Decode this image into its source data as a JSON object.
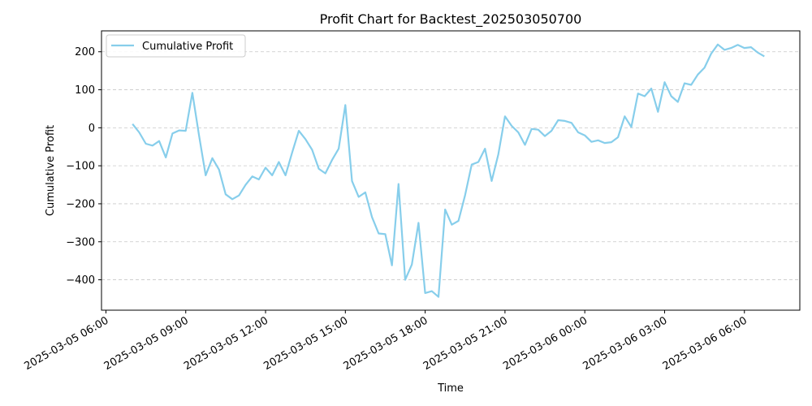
{
  "chart_data": {
    "type": "line",
    "title": "Profit Chart for Backtest_202503050700",
    "xlabel": "Time",
    "ylabel": "Cumulative Profit",
    "grid": "y-dashed",
    "legend_position": "top-left",
    "ylim": [
      -480,
      255
    ],
    "xlim": [
      "2025-03-05 05:50",
      "2025-03-06 08:05"
    ],
    "x_ticks": [
      "2025-03-05 06:00",
      "2025-03-05 09:00",
      "2025-03-05 12:00",
      "2025-03-05 15:00",
      "2025-03-05 18:00",
      "2025-03-05 21:00",
      "2025-03-06 00:00",
      "2025-03-06 03:00",
      "2025-03-06 06:00"
    ],
    "y_ticks": [
      -400,
      -300,
      -200,
      -100,
      0,
      100,
      200
    ],
    "series": [
      {
        "name": "Cumulative Profit",
        "color": "#87ceeb",
        "points": [
          [
            "2025-03-05 07:00",
            10
          ],
          [
            "2025-03-05 07:15",
            -12
          ],
          [
            "2025-03-05 07:30",
            -42
          ],
          [
            "2025-03-05 07:45",
            -47
          ],
          [
            "2025-03-05 08:00",
            -35
          ],
          [
            "2025-03-05 08:15",
            -78
          ],
          [
            "2025-03-05 08:30",
            -15
          ],
          [
            "2025-03-05 08:45",
            -7
          ],
          [
            "2025-03-05 09:00",
            -8
          ],
          [
            "2025-03-05 09:15",
            92
          ],
          [
            "2025-03-05 09:30",
            -20
          ],
          [
            "2025-03-05 09:45",
            -125
          ],
          [
            "2025-03-05 10:00",
            -80
          ],
          [
            "2025-03-05 10:15",
            -110
          ],
          [
            "2025-03-05 10:30",
            -175
          ],
          [
            "2025-03-05 10:45",
            -188
          ],
          [
            "2025-03-05 11:00",
            -178
          ],
          [
            "2025-03-05 11:15",
            -150
          ],
          [
            "2025-03-05 11:30",
            -128
          ],
          [
            "2025-03-05 11:45",
            -136
          ],
          [
            "2025-03-05 12:00",
            -105
          ],
          [
            "2025-03-05 12:15",
            -125
          ],
          [
            "2025-03-05 12:30",
            -90
          ],
          [
            "2025-03-05 12:45",
            -125
          ],
          [
            "2025-03-05 13:00",
            -65
          ],
          [
            "2025-03-05 13:15",
            -8
          ],
          [
            "2025-03-05 13:30",
            -30
          ],
          [
            "2025-03-05 13:45",
            -58
          ],
          [
            "2025-03-05 14:00",
            -108
          ],
          [
            "2025-03-05 14:15",
            -120
          ],
          [
            "2025-03-05 14:30",
            -85
          ],
          [
            "2025-03-05 14:45",
            -55
          ],
          [
            "2025-03-05 15:00",
            60
          ],
          [
            "2025-03-05 15:15",
            -140
          ],
          [
            "2025-03-05 15:30",
            -182
          ],
          [
            "2025-03-05 15:45",
            -170
          ],
          [
            "2025-03-05 16:00",
            -235
          ],
          [
            "2025-03-05 16:15",
            -278
          ],
          [
            "2025-03-05 16:30",
            -280
          ],
          [
            "2025-03-05 16:45",
            -362
          ],
          [
            "2025-03-05 17:00",
            -148
          ],
          [
            "2025-03-05 17:15",
            -400
          ],
          [
            "2025-03-05 17:30",
            -360
          ],
          [
            "2025-03-05 17:45",
            -250
          ],
          [
            "2025-03-05 18:00",
            -435
          ],
          [
            "2025-03-05 18:15",
            -430
          ],
          [
            "2025-03-05 18:30",
            -445
          ],
          [
            "2025-03-05 18:45",
            -215
          ],
          [
            "2025-03-05 19:00",
            -255
          ],
          [
            "2025-03-05 19:15",
            -245
          ],
          [
            "2025-03-05 19:30",
            -178
          ],
          [
            "2025-03-05 19:45",
            -97
          ],
          [
            "2025-03-05 20:00",
            -90
          ],
          [
            "2025-03-05 20:15",
            -55
          ],
          [
            "2025-03-05 20:30",
            -140
          ],
          [
            "2025-03-05 20:45",
            -70
          ],
          [
            "2025-03-05 21:00",
            30
          ],
          [
            "2025-03-05 21:15",
            5
          ],
          [
            "2025-03-05 21:30",
            -12
          ],
          [
            "2025-03-05 21:45",
            -45
          ],
          [
            "2025-03-05 22:00",
            -3
          ],
          [
            "2025-03-05 22:15",
            -5
          ],
          [
            "2025-03-05 22:30",
            -22
          ],
          [
            "2025-03-05 22:45",
            -8
          ],
          [
            "2025-03-05 23:00",
            20
          ],
          [
            "2025-03-05 23:15",
            18
          ],
          [
            "2025-03-05 23:30",
            13
          ],
          [
            "2025-03-05 23:45",
            -12
          ],
          [
            "2025-03-06 00:00",
            -20
          ],
          [
            "2025-03-06 00:15",
            -37
          ],
          [
            "2025-03-06 00:30",
            -33
          ],
          [
            "2025-03-06 00:45",
            -40
          ],
          [
            "2025-03-06 01:00",
            -38
          ],
          [
            "2025-03-06 01:15",
            -25
          ],
          [
            "2025-03-06 01:30",
            30
          ],
          [
            "2025-03-06 01:45",
            2
          ],
          [
            "2025-03-06 02:00",
            90
          ],
          [
            "2025-03-06 02:15",
            83
          ],
          [
            "2025-03-06 02:30",
            103
          ],
          [
            "2025-03-06 02:45",
            42
          ],
          [
            "2025-03-06 03:00",
            120
          ],
          [
            "2025-03-06 03:15",
            83
          ],
          [
            "2025-03-06 03:30",
            68
          ],
          [
            "2025-03-06 03:45",
            117
          ],
          [
            "2025-03-06 04:00",
            113
          ],
          [
            "2025-03-06 04:15",
            140
          ],
          [
            "2025-03-06 04:30",
            158
          ],
          [
            "2025-03-06 04:45",
            195
          ],
          [
            "2025-03-06 05:00",
            219
          ],
          [
            "2025-03-06 05:15",
            205
          ],
          [
            "2025-03-06 05:30",
            210
          ],
          [
            "2025-03-06 05:45",
            218
          ],
          [
            "2025-03-06 06:00",
            210
          ],
          [
            "2025-03-06 06:15",
            212
          ],
          [
            "2025-03-06 06:30",
            198
          ],
          [
            "2025-03-06 06:45",
            188
          ]
        ]
      }
    ]
  }
}
